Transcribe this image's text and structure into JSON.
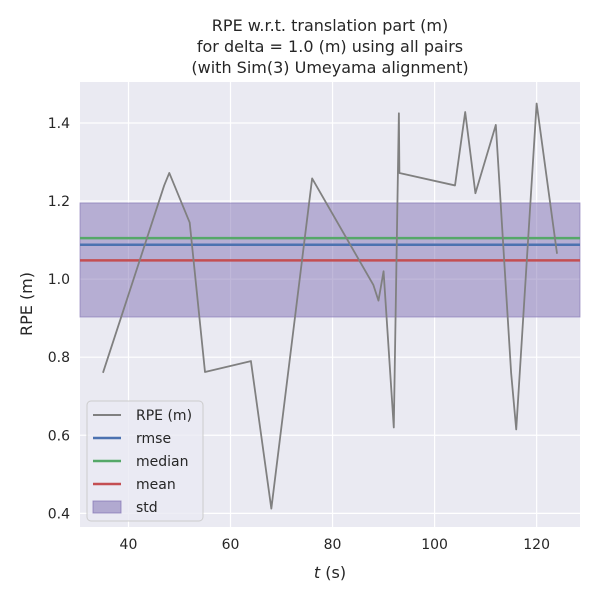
{
  "chart_data": {
    "type": "line",
    "title_lines": [
      "RPE w.r.t. translation part (m)",
      "for delta = 1.0 (m) using all pairs",
      "(with Sim(3) Umeyama alignment)"
    ],
    "xlabel_italic": "t",
    "xlabel_rest": " (s)",
    "ylabel": "RPE (m)",
    "xlim": [
      30.5,
      128.5
    ],
    "ylim": [
      0.365,
      1.505
    ],
    "x_ticks": [
      40,
      60,
      80,
      100,
      120
    ],
    "y_ticks": [
      0.4,
      0.6,
      0.8,
      1.0,
      1.2,
      1.4
    ],
    "y_tick_labels": [
      "0.4",
      "0.6",
      "0.8",
      "1.0",
      "1.2",
      "1.4"
    ],
    "grid": true,
    "series": [
      {
        "name": "RPE (m)",
        "color": "#808080",
        "x": [
          35,
          47,
          48,
          52,
          55,
          64,
          68,
          76,
          88,
          89,
          90,
          92,
          93,
          93.1,
          104,
          106,
          108,
          112,
          115,
          116,
          120,
          124
        ],
        "y": [
          0.76,
          1.24,
          1.272,
          1.145,
          0.762,
          0.79,
          0.412,
          1.258,
          0.985,
          0.945,
          1.02,
          0.62,
          1.425,
          1.272,
          1.24,
          1.428,
          1.22,
          1.395,
          0.76,
          0.615,
          1.45,
          1.065
        ]
      }
    ],
    "stats": {
      "rmse": {
        "label": "rmse",
        "value": 1.088,
        "color": "#4c72b0"
      },
      "median": {
        "label": "median",
        "value": 1.105,
        "color": "#55a868"
      },
      "mean": {
        "label": "mean",
        "value": 1.048,
        "color": "#c44e52"
      },
      "std": {
        "label": "std",
        "lower": 0.903,
        "upper": 1.195,
        "color": "#8172b3"
      }
    },
    "legend": {
      "position": "lower-left",
      "entries": [
        "RPE (m)",
        "rmse",
        "median",
        "mean",
        "std"
      ]
    }
  }
}
